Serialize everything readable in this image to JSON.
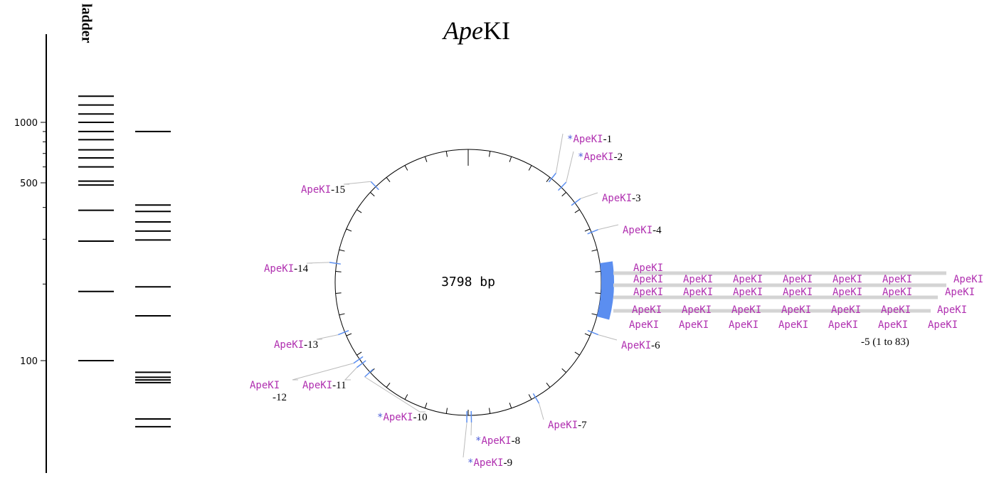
{
  "title": {
    "italic": "Ape",
    "regular": "KI"
  },
  "gel": {
    "lane_label": "ladder",
    "yticks": [
      100,
      500,
      1000
    ],
    "minor_ticks": [
      200,
      300,
      400,
      600,
      700,
      800,
      900
    ],
    "ladder_bands": [
      1350,
      1220,
      1100,
      1000,
      900,
      820,
      730,
      665,
      600,
      510,
      490,
      390,
      295,
      187,
      100
    ],
    "sample_bands": [
      900,
      409,
      386,
      351,
      323,
      298,
      195,
      150,
      90,
      86,
      84,
      82,
      59,
      55
    ]
  },
  "plasmid": {
    "size_label": "3798 bp",
    "length": 3798,
    "sites": [
      {
        "prefix": "*",
        "name": "ApeKI",
        "suffix": "-1",
        "position": 409
      },
      {
        "prefix": "*",
        "name": "ApeKI",
        "suffix": "-2",
        "position": 468
      },
      {
        "name": "ApeKI",
        "suffix": "-3",
        "position": 562
      },
      {
        "name": "ApeKI",
        "suffix": "-4",
        "position": 716
      },
      {
        "name": "ApeKI",
        "suffix": "-6",
        "position": 1181
      },
      {
        "name": "ApeKI",
        "suffix": "-7",
        "position": 1579
      },
      {
        "prefix": "*",
        "name": "ApeKI",
        "suffix": "-8",
        "position": 1885
      },
      {
        "prefix": "*",
        "name": "ApeKI",
        "suffix": "-9",
        "position": 1905
      },
      {
        "prefix": "*",
        "name": "ApeKI",
        "suffix": "-10",
        "position": 2401
      },
      {
        "name": "ApeKI",
        "suffix": "-11",
        "position": 2454
      },
      {
        "name": "ApeKI",
        "suffix": "-12",
        "position": 2477
      },
      {
        "name": "ApeKI",
        "suffix": "-13",
        "position": 2617
      },
      {
        "name": "ApeKI",
        "suffix": "-14",
        "position": 2935
      },
      {
        "name": "ApeKI",
        "suffix": "-15",
        "position": 3334
      }
    ],
    "cluster": {
      "suffix": "-5 (1 to 83)",
      "start": 862,
      "end": 1106,
      "labels": [
        "ApeKI",
        "ApeKI",
        "ApeKI",
        "ApeKI",
        "ApeKI",
        "ApeKI",
        "ApeKI",
        "ApeKI",
        "ApeKI",
        "ApeKI",
        "ApeKI",
        "ApeKI",
        "ApeKI",
        "ApeKI",
        "ApeKI",
        "ApeKI",
        "ApeKI",
        "ApeKI",
        "ApeKI",
        "ApeKI",
        "ApeKI",
        "ApeKI",
        "ApeKI",
        "ApeKI",
        "ApeKI",
        "ApeKI",
        "ApeKI",
        "ApeKI",
        "ApeKI"
      ]
    }
  }
}
